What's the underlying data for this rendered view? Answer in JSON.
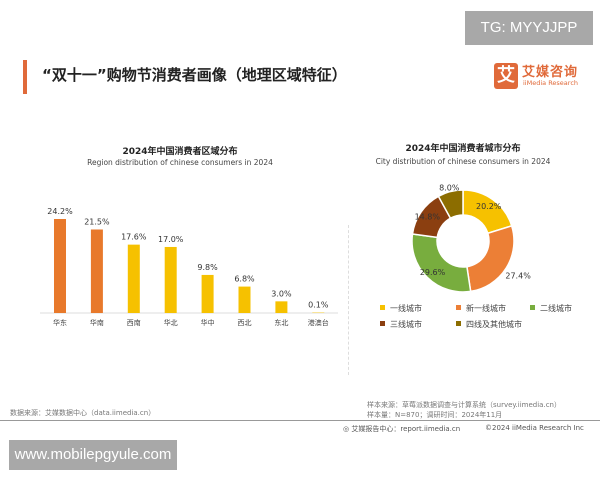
{
  "watermark_top": "TG: MYYJJPP",
  "watermark_bottom": "www.mobilepgyule.com",
  "header": {
    "title": "“双十一”购物节消费者画像（地理区域特征）",
    "logo_cn": "艾媒咨询",
    "logo_mark": "艾",
    "logo_en": "iiMedia Research"
  },
  "chart_data": [
    {
      "type": "bar",
      "title": "2024年中国消费者区域分布",
      "subtitle": "Region distribution of chinese consumers in 2024",
      "categories": [
        "华东",
        "华南",
        "西南",
        "华北",
        "华中",
        "西北",
        "东北",
        "港澳台"
      ],
      "values": [
        24.2,
        21.5,
        17.6,
        17.0,
        9.8,
        6.8,
        3.0,
        0.1
      ],
      "labels": [
        "24.2%",
        "21.5%",
        "17.6%",
        "17.0%",
        "9.8%",
        "6.8%",
        "3.0%",
        "0.1%"
      ],
      "colors": [
        "#e8792b",
        "#e8792b",
        "#f6c100",
        "#f6c100",
        "#f6c100",
        "#f6c100",
        "#f6c100",
        "#f6c100"
      ],
      "unit": "%",
      "ylim": [
        0,
        25
      ],
      "grid": false
    },
    {
      "type": "pie",
      "donut": true,
      "title": "2024年中国消费者城市分布",
      "subtitle": "City distribution of chinese consumers in 2024",
      "categories": [
        "一线城市",
        "新一线城市",
        "二线城市",
        "三线城市",
        "四线及其他城市"
      ],
      "values": [
        20.2,
        27.4,
        29.6,
        14.8,
        8.0
      ],
      "labels": [
        "20.2%",
        "27.4%",
        "29.6%",
        "14.8%",
        "8.0%"
      ],
      "colors": [
        "#f6c100",
        "#ec7f36",
        "#78ad3e",
        "#8b3f10",
        "#8c6d00"
      ],
      "legend": "bottom"
    }
  ],
  "footer": {
    "source_left": "数据来源：艾媒数据中心（data.iimedia.cn）",
    "sample_source": "样本来源：草莓派数据调查与计算系统（survey.iimedia.cn）",
    "sample_size": "样本量：N=870；调研时间：2024年11月",
    "report_center": "艾媒报告中心：report.iimedia.cn",
    "copyright": "©2024  iiMedia Research Inc"
  }
}
